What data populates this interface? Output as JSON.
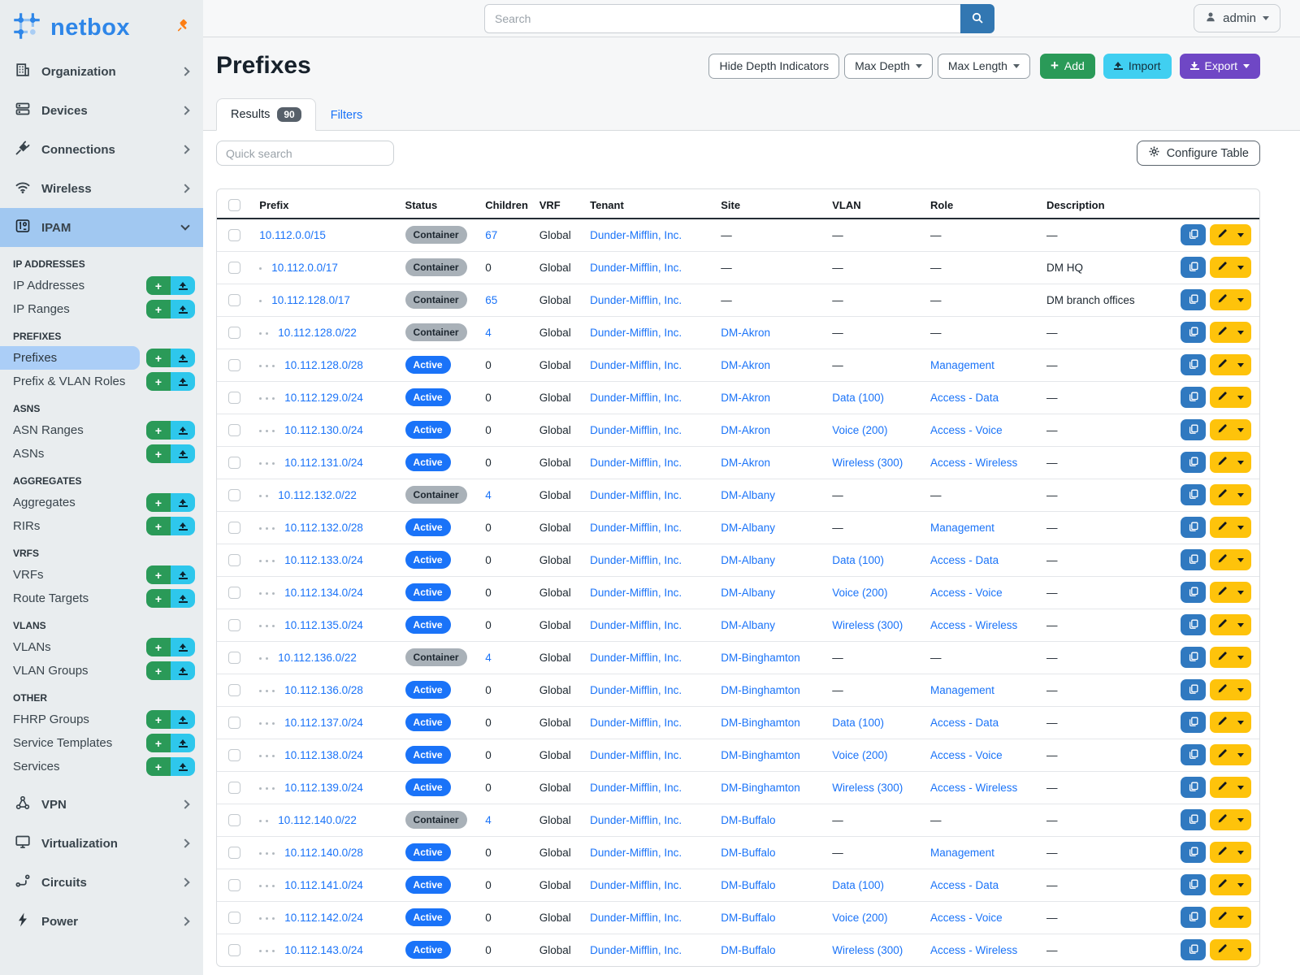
{
  "brand": {
    "name": "netbox",
    "logo_icon": "netbox-logo-icon",
    "pin_icon": "pin-icon"
  },
  "topbar": {
    "search_placeholder": "Search",
    "user": "admin"
  },
  "sidebar": {
    "top_items": [
      {
        "label": "Organization",
        "icon": "building-icon"
      },
      {
        "label": "Devices",
        "icon": "server-icon"
      },
      {
        "label": "Connections",
        "icon": "plug-icon"
      },
      {
        "label": "Wireless",
        "icon": "wifi-icon"
      }
    ],
    "active_item": {
      "label": "IPAM",
      "icon": "binary-icon"
    },
    "sections": [
      {
        "title": "IP ADDRESSES",
        "items": [
          {
            "label": "IP Addresses"
          },
          {
            "label": "IP Ranges"
          }
        ]
      },
      {
        "title": "PREFIXES",
        "items": [
          {
            "label": "Prefixes",
            "selected": true
          },
          {
            "label": "Prefix & VLAN Roles"
          }
        ]
      },
      {
        "title": "ASNS",
        "items": [
          {
            "label": "ASN Ranges"
          },
          {
            "label": "ASNs"
          }
        ]
      },
      {
        "title": "AGGREGATES",
        "items": [
          {
            "label": "Aggregates"
          },
          {
            "label": "RIRs"
          }
        ]
      },
      {
        "title": "VRFS",
        "items": [
          {
            "label": "VRFs"
          },
          {
            "label": "Route Targets"
          }
        ]
      },
      {
        "title": "VLANS",
        "items": [
          {
            "label": "VLANs"
          },
          {
            "label": "VLAN Groups"
          }
        ]
      },
      {
        "title": "OTHER",
        "items": [
          {
            "label": "FHRP Groups"
          },
          {
            "label": "Service Templates"
          },
          {
            "label": "Services"
          }
        ]
      }
    ],
    "bottom_items": [
      {
        "label": "VPN",
        "icon": "vpn-icon"
      },
      {
        "label": "Virtualization",
        "icon": "monitor-icon"
      },
      {
        "label": "Circuits",
        "icon": "circuits-icon"
      },
      {
        "label": "Power",
        "icon": "power-icon"
      }
    ]
  },
  "page": {
    "title": "Prefixes",
    "actions": {
      "hide_depth": "Hide Depth Indicators",
      "max_depth": "Max Depth",
      "max_length": "Max Length",
      "add": "Add",
      "import": "Import",
      "export": "Export"
    }
  },
  "tabs": {
    "results_label": "Results",
    "results_count": "90",
    "filters_label": "Filters"
  },
  "toolbar": {
    "quick_search_placeholder": "Quick search",
    "configure_label": "Configure Table"
  },
  "table": {
    "empty_placeholder": "—",
    "columns": [
      "Prefix",
      "Status",
      "Children",
      "VRF",
      "Tenant",
      "Site",
      "VLAN",
      "Role",
      "Description"
    ],
    "rows": [
      {
        "depth": 0,
        "prefix": "10.112.0.0/15",
        "status": "Container",
        "children": "67",
        "vrf": "Global",
        "tenant": "Dunder-Mifflin, Inc.",
        "site": "",
        "vlan": "",
        "role": "",
        "description": ""
      },
      {
        "depth": 1,
        "prefix": "10.112.0.0/17",
        "status": "Container",
        "children": "0",
        "vrf": "Global",
        "tenant": "Dunder-Mifflin, Inc.",
        "site": "",
        "vlan": "",
        "role": "",
        "description": "DM HQ"
      },
      {
        "depth": 1,
        "prefix": "10.112.128.0/17",
        "status": "Container",
        "children": "65",
        "vrf": "Global",
        "tenant": "Dunder-Mifflin, Inc.",
        "site": "",
        "vlan": "",
        "role": "",
        "description": "DM branch offices"
      },
      {
        "depth": 2,
        "prefix": "10.112.128.0/22",
        "status": "Container",
        "children": "4",
        "vrf": "Global",
        "tenant": "Dunder-Mifflin, Inc.",
        "site": "DM-Akron",
        "vlan": "",
        "role": "",
        "description": ""
      },
      {
        "depth": 3,
        "prefix": "10.112.128.0/28",
        "status": "Active",
        "children": "0",
        "vrf": "Global",
        "tenant": "Dunder-Mifflin, Inc.",
        "site": "DM-Akron",
        "vlan": "",
        "role": "Management",
        "description": ""
      },
      {
        "depth": 3,
        "prefix": "10.112.129.0/24",
        "status": "Active",
        "children": "0",
        "vrf": "Global",
        "tenant": "Dunder-Mifflin, Inc.",
        "site": "DM-Akron",
        "vlan": "Data (100)",
        "role": "Access - Data",
        "description": ""
      },
      {
        "depth": 3,
        "prefix": "10.112.130.0/24",
        "status": "Active",
        "children": "0",
        "vrf": "Global",
        "tenant": "Dunder-Mifflin, Inc.",
        "site": "DM-Akron",
        "vlan": "Voice (200)",
        "role": "Access - Voice",
        "description": ""
      },
      {
        "depth": 3,
        "prefix": "10.112.131.0/24",
        "status": "Active",
        "children": "0",
        "vrf": "Global",
        "tenant": "Dunder-Mifflin, Inc.",
        "site": "DM-Akron",
        "vlan": "Wireless (300)",
        "role": "Access - Wireless",
        "description": ""
      },
      {
        "depth": 2,
        "prefix": "10.112.132.0/22",
        "status": "Container",
        "children": "4",
        "vrf": "Global",
        "tenant": "Dunder-Mifflin, Inc.",
        "site": "DM-Albany",
        "vlan": "",
        "role": "",
        "description": ""
      },
      {
        "depth": 3,
        "prefix": "10.112.132.0/28",
        "status": "Active",
        "children": "0",
        "vrf": "Global",
        "tenant": "Dunder-Mifflin, Inc.",
        "site": "DM-Albany",
        "vlan": "",
        "role": "Management",
        "description": ""
      },
      {
        "depth": 3,
        "prefix": "10.112.133.0/24",
        "status": "Active",
        "children": "0",
        "vrf": "Global",
        "tenant": "Dunder-Mifflin, Inc.",
        "site": "DM-Albany",
        "vlan": "Data (100)",
        "role": "Access - Data",
        "description": ""
      },
      {
        "depth": 3,
        "prefix": "10.112.134.0/24",
        "status": "Active",
        "children": "0",
        "vrf": "Global",
        "tenant": "Dunder-Mifflin, Inc.",
        "site": "DM-Albany",
        "vlan": "Voice (200)",
        "role": "Access - Voice",
        "description": ""
      },
      {
        "depth": 3,
        "prefix": "10.112.135.0/24",
        "status": "Active",
        "children": "0",
        "vrf": "Global",
        "tenant": "Dunder-Mifflin, Inc.",
        "site": "DM-Albany",
        "vlan": "Wireless (300)",
        "role": "Access - Wireless",
        "description": ""
      },
      {
        "depth": 2,
        "prefix": "10.112.136.0/22",
        "status": "Container",
        "children": "4",
        "vrf": "Global",
        "tenant": "Dunder-Mifflin, Inc.",
        "site": "DM-Binghamton",
        "vlan": "",
        "role": "",
        "description": ""
      },
      {
        "depth": 3,
        "prefix": "10.112.136.0/28",
        "status": "Active",
        "children": "0",
        "vrf": "Global",
        "tenant": "Dunder-Mifflin, Inc.",
        "site": "DM-Binghamton",
        "vlan": "",
        "role": "Management",
        "description": ""
      },
      {
        "depth": 3,
        "prefix": "10.112.137.0/24",
        "status": "Active",
        "children": "0",
        "vrf": "Global",
        "tenant": "Dunder-Mifflin, Inc.",
        "site": "DM-Binghamton",
        "vlan": "Data (100)",
        "role": "Access - Data",
        "description": ""
      },
      {
        "depth": 3,
        "prefix": "10.112.138.0/24",
        "status": "Active",
        "children": "0",
        "vrf": "Global",
        "tenant": "Dunder-Mifflin, Inc.",
        "site": "DM-Binghamton",
        "vlan": "Voice (200)",
        "role": "Access - Voice",
        "description": ""
      },
      {
        "depth": 3,
        "prefix": "10.112.139.0/24",
        "status": "Active",
        "children": "0",
        "vrf": "Global",
        "tenant": "Dunder-Mifflin, Inc.",
        "site": "DM-Binghamton",
        "vlan": "Wireless (300)",
        "role": "Access - Wireless",
        "description": ""
      },
      {
        "depth": 2,
        "prefix": "10.112.140.0/22",
        "status": "Container",
        "children": "4",
        "vrf": "Global",
        "tenant": "Dunder-Mifflin, Inc.",
        "site": "DM-Buffalo",
        "vlan": "",
        "role": "",
        "description": ""
      },
      {
        "depth": 3,
        "prefix": "10.112.140.0/28",
        "status": "Active",
        "children": "0",
        "vrf": "Global",
        "tenant": "Dunder-Mifflin, Inc.",
        "site": "DM-Buffalo",
        "vlan": "",
        "role": "Management",
        "description": ""
      },
      {
        "depth": 3,
        "prefix": "10.112.141.0/24",
        "status": "Active",
        "children": "0",
        "vrf": "Global",
        "tenant": "Dunder-Mifflin, Inc.",
        "site": "DM-Buffalo",
        "vlan": "Data (100)",
        "role": "Access - Data",
        "description": ""
      },
      {
        "depth": 3,
        "prefix": "10.112.142.0/24",
        "status": "Active",
        "children": "0",
        "vrf": "Global",
        "tenant": "Dunder-Mifflin, Inc.",
        "site": "DM-Buffalo",
        "vlan": "Voice (200)",
        "role": "Access - Voice",
        "description": ""
      },
      {
        "depth": 3,
        "prefix": "10.112.143.0/24",
        "status": "Active",
        "children": "0",
        "vrf": "Global",
        "tenant": "Dunder-Mifflin, Inc.",
        "site": "DM-Buffalo",
        "vlan": "Wireless (300)",
        "role": "Access - Wireless",
        "description": ""
      }
    ]
  },
  "colors": {
    "accent_blue": "#1a73f8",
    "container_badge": "#a9b1b8",
    "add_green": "#2a9a58",
    "import_cyan": "#40cff1",
    "export_purple": "#6f47c5",
    "copy_blue": "#3079c0",
    "edit_yellow": "#fec30b",
    "sidebar_active": "#a1c8f1",
    "selected_item": "#abcef7"
  }
}
